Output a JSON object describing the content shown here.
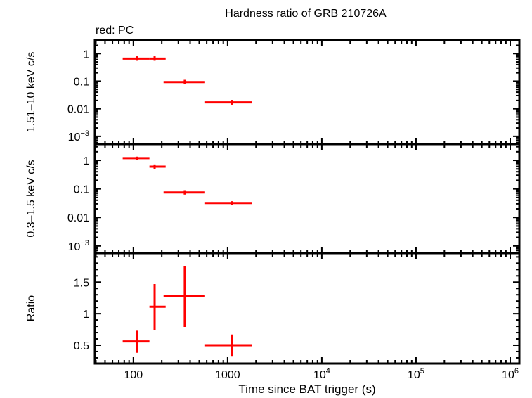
{
  "chart_data": {
    "type": "scatter",
    "title": "Hardness ratio of GRB 210726A",
    "legend_text": "red: PC",
    "xlabel": "Time since BAT trigger (s)",
    "xscale": "log",
    "xlim": [
      39,
      1250000
    ],
    "xticks": [
      {
        "v": 100,
        "l": "100"
      },
      {
        "v": 1000,
        "l": "1000"
      },
      {
        "v": 10000,
        "l": "10",
        "e": "4"
      },
      {
        "v": 100000,
        "l": "10",
        "e": "5"
      },
      {
        "v": 1000000,
        "l": "10",
        "e": "6"
      }
    ],
    "color": "#ff0000",
    "panels": [
      {
        "name": "hard",
        "ylabel": "1.51–10 keV c/s",
        "yscale": "log",
        "ylim": [
          0.00052,
          3.1
        ],
        "yticks": [
          {
            "v": 1,
            "l": "1"
          },
          {
            "v": 0.1,
            "l": "0.1"
          },
          {
            "v": 0.01,
            "l": "0.01"
          },
          {
            "v": 0.001,
            "l": "10",
            "e": "−3"
          }
        ],
        "points": [
          {
            "x": 109,
            "xlo": 77,
            "xhi": 148,
            "y": 0.66,
            "ylo": 0.55,
            "yhi": 0.8
          },
          {
            "x": 168,
            "xlo": 148,
            "xhi": 220,
            "y": 0.66,
            "ylo": 0.55,
            "yhi": 0.8
          },
          {
            "x": 351,
            "xlo": 209,
            "xhi": 567,
            "y": 0.093,
            "ylo": 0.078,
            "yhi": 0.112
          },
          {
            "x": 1110,
            "xlo": 567,
            "xhi": 1820,
            "y": 0.017,
            "ylo": 0.014,
            "yhi": 0.021
          }
        ]
      },
      {
        "name": "soft",
        "ylabel": "0.3–1.5 keV c/s",
        "yscale": "log",
        "ylim": [
          0.00056,
          3.7
        ],
        "yticks": [
          {
            "v": 1,
            "l": "1"
          },
          {
            "v": 0.1,
            "l": "0.1"
          },
          {
            "v": 0.01,
            "l": "0.01"
          },
          {
            "v": 0.001,
            "l": "10",
            "e": "−3"
          }
        ],
        "points": [
          {
            "x": 109,
            "xlo": 77,
            "xhi": 148,
            "y": 1.2,
            "ylo": 1.05,
            "yhi": 1.35
          },
          {
            "x": 168,
            "xlo": 148,
            "xhi": 220,
            "y": 0.6,
            "ylo": 0.5,
            "yhi": 0.72
          },
          {
            "x": 351,
            "xlo": 209,
            "xhi": 567,
            "y": 0.075,
            "ylo": 0.063,
            "yhi": 0.09
          },
          {
            "x": 1110,
            "xlo": 567,
            "xhi": 1820,
            "y": 0.032,
            "ylo": 0.028,
            "yhi": 0.037
          }
        ]
      },
      {
        "name": "ratio",
        "ylabel": "Ratio",
        "yscale": "linear",
        "ylim": [
          0.21,
          1.96
        ],
        "yticks": [
          {
            "v": 1.5,
            "l": "1.5"
          },
          {
            "v": 1,
            "l": "1"
          },
          {
            "v": 0.5,
            "l": "0.5"
          }
        ],
        "points": [
          {
            "x": 109,
            "xlo": 77,
            "xhi": 148,
            "y": 0.56,
            "ylo": 0.38,
            "yhi": 0.73
          },
          {
            "x": 168,
            "xlo": 148,
            "xhi": 220,
            "y": 1.11,
            "ylo": 0.74,
            "yhi": 1.47
          },
          {
            "x": 351,
            "xlo": 209,
            "xhi": 567,
            "y": 1.28,
            "ylo": 0.79,
            "yhi": 1.76
          },
          {
            "x": 1110,
            "xlo": 567,
            "xhi": 1820,
            "y": 0.5,
            "ylo": 0.33,
            "yhi": 0.67
          }
        ]
      }
    ]
  }
}
